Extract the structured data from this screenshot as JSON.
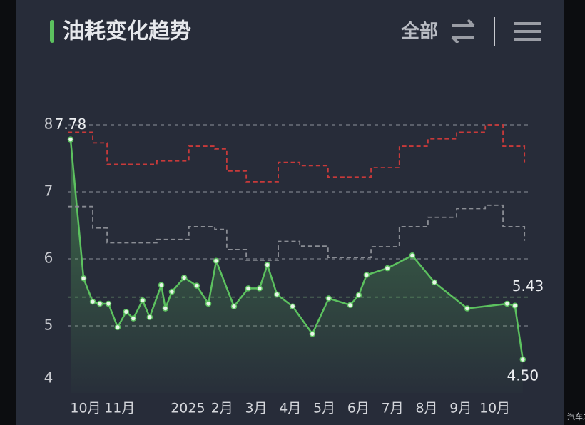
{
  "chart_data": {
    "type": "line",
    "title": "油耗变化趋势",
    "filter_label": "全部",
    "watermark": "汽车之家",
    "xlim": [
      -0.6,
      13.0
    ],
    "xticks": [
      {
        "value": 0,
        "label": "10月"
      },
      {
        "value": 1,
        "label": "11月"
      },
      {
        "value": 3,
        "label": "2025"
      },
      {
        "value": 4,
        "label": "2月"
      },
      {
        "value": 5,
        "label": "3月"
      },
      {
        "value": 6,
        "label": "4月"
      },
      {
        "value": 7,
        "label": "5月"
      },
      {
        "value": 8,
        "label": "6月"
      },
      {
        "value": 9,
        "label": "7月"
      },
      {
        "value": 10,
        "label": "8月"
      },
      {
        "value": 11,
        "label": "9月"
      },
      {
        "value": 12,
        "label": "10月"
      }
    ],
    "ylim": [
      4,
      8
    ],
    "yticks": [
      4,
      5,
      6,
      7,
      8
    ],
    "grid": true,
    "average": 5.43,
    "series": [
      {
        "color": "#5cc15f",
        "x": [
          -0.44,
          -0.06,
          0.21,
          0.42,
          0.67,
          0.94,
          1.19,
          1.4,
          1.67,
          1.88,
          2.22,
          2.34,
          2.53,
          2.89,
          3.26,
          3.6,
          3.83,
          4.35,
          4.77,
          5.1,
          5.33,
          5.61,
          6.07,
          6.65,
          7.13,
          7.76,
          8.01,
          8.24,
          8.85,
          9.58,
          10.23,
          11.19,
          12.36,
          12.59,
          12.82
        ],
        "values": [
          7.78,
          5.71,
          5.36,
          5.33,
          5.33,
          4.98,
          5.21,
          5.11,
          5.38,
          5.13,
          5.61,
          5.26,
          5.51,
          5.72,
          5.6,
          5.33,
          5.97,
          5.29,
          5.56,
          5.56,
          5.91,
          5.47,
          5.29,
          4.88,
          5.41,
          5.31,
          5.46,
          5.76,
          5.86,
          6.05,
          5.65,
          5.26,
          5.33,
          5.3,
          4.5
        ],
        "value_labels": [
          "7.78",
          null,
          null,
          null,
          null,
          null,
          null,
          null,
          null,
          null,
          null,
          null,
          null,
          null,
          null,
          null,
          null,
          null,
          null,
          null,
          null,
          null,
          null,
          null,
          null,
          null,
          null,
          null,
          null,
          null,
          null,
          null,
          null,
          null,
          "4.50"
        ]
      },
      {
        "color": "#c83a3a",
        "dashed": true,
        "step": true,
        "x": [
          -0.52,
          0.21,
          0.63,
          2.09,
          3.03,
          3.79,
          4.14,
          4.71,
          5.65,
          6.28,
          7.11,
          7.74,
          8.37,
          9.2,
          10.04,
          10.88,
          11.72,
          12.24,
          12.87
        ],
        "values": [
          7.89,
          7.73,
          7.41,
          7.46,
          7.68,
          7.64,
          7.31,
          7.15,
          7.44,
          7.39,
          7.22,
          7.22,
          7.36,
          7.68,
          7.79,
          7.89,
          8.0,
          7.68,
          7.44
        ]
      },
      {
        "color": "#8a8d94",
        "dashed": true,
        "step": true,
        "x": [
          -0.52,
          0.21,
          0.63,
          2.09,
          3.03,
          3.79,
          4.14,
          4.71,
          5.65,
          6.28,
          7.11,
          7.74,
          8.37,
          9.2,
          10.04,
          10.88,
          11.72,
          12.24,
          12.87
        ],
        "values": [
          6.78,
          6.46,
          6.24,
          6.29,
          6.48,
          6.44,
          6.14,
          5.98,
          6.26,
          6.19,
          6.02,
          6.02,
          6.18,
          6.48,
          6.62,
          6.75,
          6.8,
          6.48,
          6.27
        ]
      }
    ]
  }
}
